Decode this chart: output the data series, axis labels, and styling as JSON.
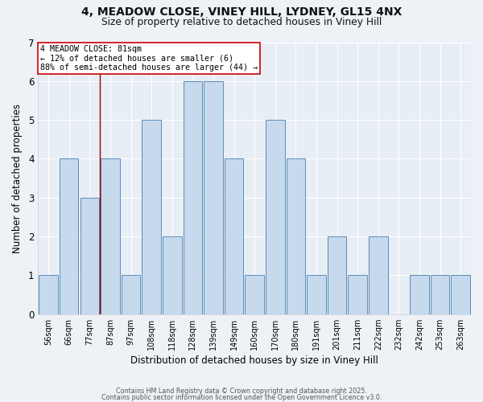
{
  "title_line1": "4, MEADOW CLOSE, VINEY HILL, LYDNEY, GL15 4NX",
  "title_line2": "Size of property relative to detached houses in Viney Hill",
  "xlabel": "Distribution of detached houses by size in Viney Hill",
  "ylabel": "Number of detached properties",
  "categories": [
    "56sqm",
    "66sqm",
    "77sqm",
    "87sqm",
    "97sqm",
    "108sqm",
    "118sqm",
    "128sqm",
    "139sqm",
    "149sqm",
    "160sqm",
    "170sqm",
    "180sqm",
    "191sqm",
    "201sqm",
    "211sqm",
    "222sqm",
    "232sqm",
    "242sqm",
    "253sqm",
    "263sqm"
  ],
  "values": [
    1,
    4,
    3,
    4,
    1,
    5,
    2,
    6,
    6,
    4,
    1,
    5,
    4,
    1,
    2,
    1,
    2,
    0,
    1,
    1,
    1
  ],
  "bar_color": "#c6d9ed",
  "bar_edge_color": "#5b8db8",
  "background_color": "#eef2f7",
  "plot_bg_color": "#e8eef5",
  "grid_color": "#ffffff",
  "ylim": [
    0,
    7
  ],
  "yticks": [
    0,
    1,
    2,
    3,
    4,
    5,
    6,
    7
  ],
  "red_line_x": 2.5,
  "annotation_title": "4 MEADOW CLOSE: 81sqm",
  "annotation_line2": "← 12% of detached houses are smaller (6)",
  "annotation_line3": "88% of semi-detached houses are larger (44) →",
  "footnote1": "Contains HM Land Registry data © Crown copyright and database right 2025.",
  "footnote2": "Contains public sector information licensed under the Open Government Licence v3.0."
}
